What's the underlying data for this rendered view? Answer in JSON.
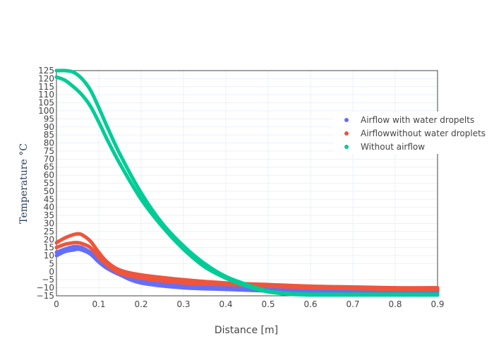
{
  "chart_data": {
    "type": "scatter",
    "xlabel": "Distance [m]",
    "ylabel": "Temperature °C",
    "xlim": [
      0,
      0.9
    ],
    "ylim": [
      -15,
      125
    ],
    "x_ticks": [
      0,
      0.1,
      0.2,
      0.3,
      0.4,
      0.5,
      0.6,
      0.7,
      0.8,
      0.9
    ],
    "y_ticks": [
      125,
      120,
      115,
      110,
      105,
      100,
      95,
      90,
      85,
      80,
      75,
      70,
      65,
      60,
      55,
      50,
      45,
      40,
      35,
      30,
      25,
      20,
      15,
      10,
      5,
      0,
      -5,
      -10,
      -15
    ],
    "grid": true,
    "legend_position": "right",
    "series": [
      {
        "name": "Airflow with water dropelts",
        "color": "#636efa",
        "curves": [
          {
            "x": [
              0,
              0.02,
              0.04,
              0.05,
              0.06,
              0.08,
              0.1,
              0.12,
              0.15,
              0.2,
              0.3,
              0.4,
              0.5,
              0.6,
              0.7,
              0.8,
              0.9
            ],
            "y": [
              12,
              14,
              15.5,
              15.5,
              15,
              12,
              7,
              3,
              -1,
              -6,
              -9,
              -10,
              -11,
              -11.5,
              -11.5,
              -12,
              -12
            ]
          },
          {
            "x": [
              0,
              0.02,
              0.04,
              0.05,
              0.06,
              0.08,
              0.1,
              0.12,
              0.15,
              0.2,
              0.3,
              0.4,
              0.5,
              0.6,
              0.7,
              0.8,
              0.9
            ],
            "y": [
              10,
              12.5,
              13.5,
              14,
              13.5,
              11,
              6,
              2,
              -2,
              -7,
              -10,
              -11,
              -12,
              -12.5,
              -12.5,
              -13,
              -13
            ]
          }
        ]
      },
      {
        "name": "Airflowwithout water droplets",
        "color": "#ef553b",
        "curves": [
          {
            "x": [
              0,
              0.02,
              0.04,
              0.05,
              0.06,
              0.08,
              0.1,
              0.12,
              0.15,
              0.2,
              0.3,
              0.4,
              0.5,
              0.6,
              0.7,
              0.8,
              0.9
            ],
            "y": [
              18,
              21,
              23,
              23.5,
              23,
              19,
              12,
              6,
              1,
              -2,
              -5,
              -7,
              -8,
              -9,
              -9.5,
              -10,
              -10
            ]
          },
          {
            "x": [
              0,
              0.02,
              0.04,
              0.05,
              0.06,
              0.08,
              0.1,
              0.12,
              0.15,
              0.2,
              0.3,
              0.4,
              0.5,
              0.6,
              0.7,
              0.8,
              0.9
            ],
            "y": [
              15,
              17,
              18,
              18,
              17.5,
              15,
              9,
              4,
              -1,
              -4,
              -7,
              -8,
              -9,
              -10,
              -10.5,
              -11,
              -11
            ]
          }
        ]
      },
      {
        "name": "Without airflow",
        "color": "#00cc96",
        "curves": [
          {
            "x": [
              0,
              0.02,
              0.04,
              0.06,
              0.08,
              0.1,
              0.12,
              0.15,
              0.2,
              0.25,
              0.3,
              0.35,
              0.4,
              0.45,
              0.5,
              0.55,
              0.6,
              0.65,
              0.7,
              0.8,
              0.9
            ],
            "y": [
              125,
              125,
              124,
              120,
              113,
              102,
              90,
              73,
              49,
              30,
              16,
              5,
              -3,
              -8,
              -12,
              -13.5,
              -14,
              -14,
              -14,
              -14,
              -14
            ]
          },
          {
            "x": [
              0,
              0.02,
              0.04,
              0.06,
              0.08,
              0.1,
              0.12,
              0.15,
              0.2,
              0.25,
              0.3,
              0.35,
              0.4,
              0.45,
              0.5,
              0.55,
              0.6,
              0.65,
              0.7,
              0.8,
              0.9
            ],
            "y": [
              121,
              119,
              115,
              110,
              103,
              93,
              82,
              67,
              45,
              28,
              14,
              3,
              -4,
              -9,
              -12.5,
              -14,
              -14.5,
              -14.5,
              -14.5,
              -14.5,
              -14.5
            ]
          }
        ]
      }
    ]
  }
}
